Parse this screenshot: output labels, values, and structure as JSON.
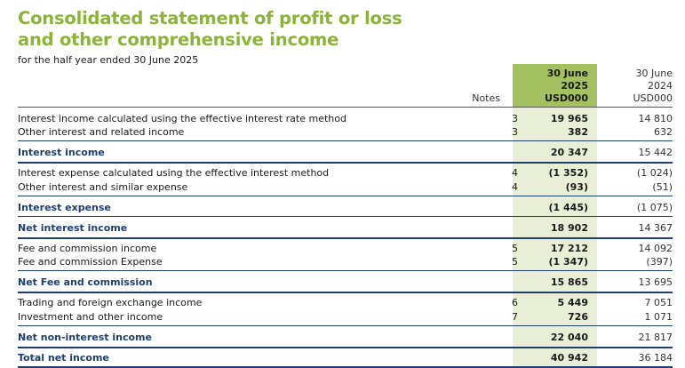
{
  "title_line1": "Consolidated statement of profit or loss",
  "title_line2": "and other comprehensive income",
  "subtitle": "for the half year ended 30 June 2025",
  "header": {
    "notes": "Notes",
    "current": [
      "30 June",
      "2025",
      "USD000"
    ],
    "prior": [
      "30 June",
      "2024",
      "USD000"
    ]
  },
  "rows": [
    {
      "label": "Interest income calculated using the effective interest rate method",
      "note": "3",
      "cur": "19 965",
      "prior": "14 810"
    },
    {
      "label": "Other interest and related income",
      "note": "3",
      "cur": "382",
      "prior": "632"
    },
    {
      "label": "Interest income",
      "note": "",
      "cur": "20 347",
      "prior": "15 442"
    },
    {
      "label": "Interest expense calculated using the effective interest method",
      "note": "4",
      "cur": "(1 352)",
      "prior": "(1 024)"
    },
    {
      "label": "Other interest and similar expense",
      "note": "4",
      "cur": "(93)",
      "prior": "(51)"
    },
    {
      "label": "Interest expense",
      "note": "",
      "cur": "(1 445)",
      "prior": "(1 075)"
    },
    {
      "label": "Net interest income",
      "note": "",
      "cur": "18 902",
      "prior": "14 367"
    },
    {
      "label": "Fee and commission income",
      "note": "5",
      "cur": "17 212",
      "prior": "14 092"
    },
    {
      "label": "Fee and commission Expense",
      "note": "5",
      "cur": "(1 347)",
      "prior": "(397)"
    },
    {
      "label": "Net Fee and commission",
      "note": "",
      "cur": "15 865",
      "prior": "13 695"
    },
    {
      "label": "Trading and foreign exchange income",
      "note": "6",
      "cur": "5 449",
      "prior": "7 051"
    },
    {
      "label": "Investment and other income",
      "note": "7",
      "cur": "726",
      "prior": "1 071"
    },
    {
      "label": "Net non-interest income",
      "note": "",
      "cur": "22 040",
      "prior": "21 817"
    },
    {
      "label": "Total net income",
      "note": "",
      "cur": "40 942",
      "prior": "36 184"
    }
  ]
}
